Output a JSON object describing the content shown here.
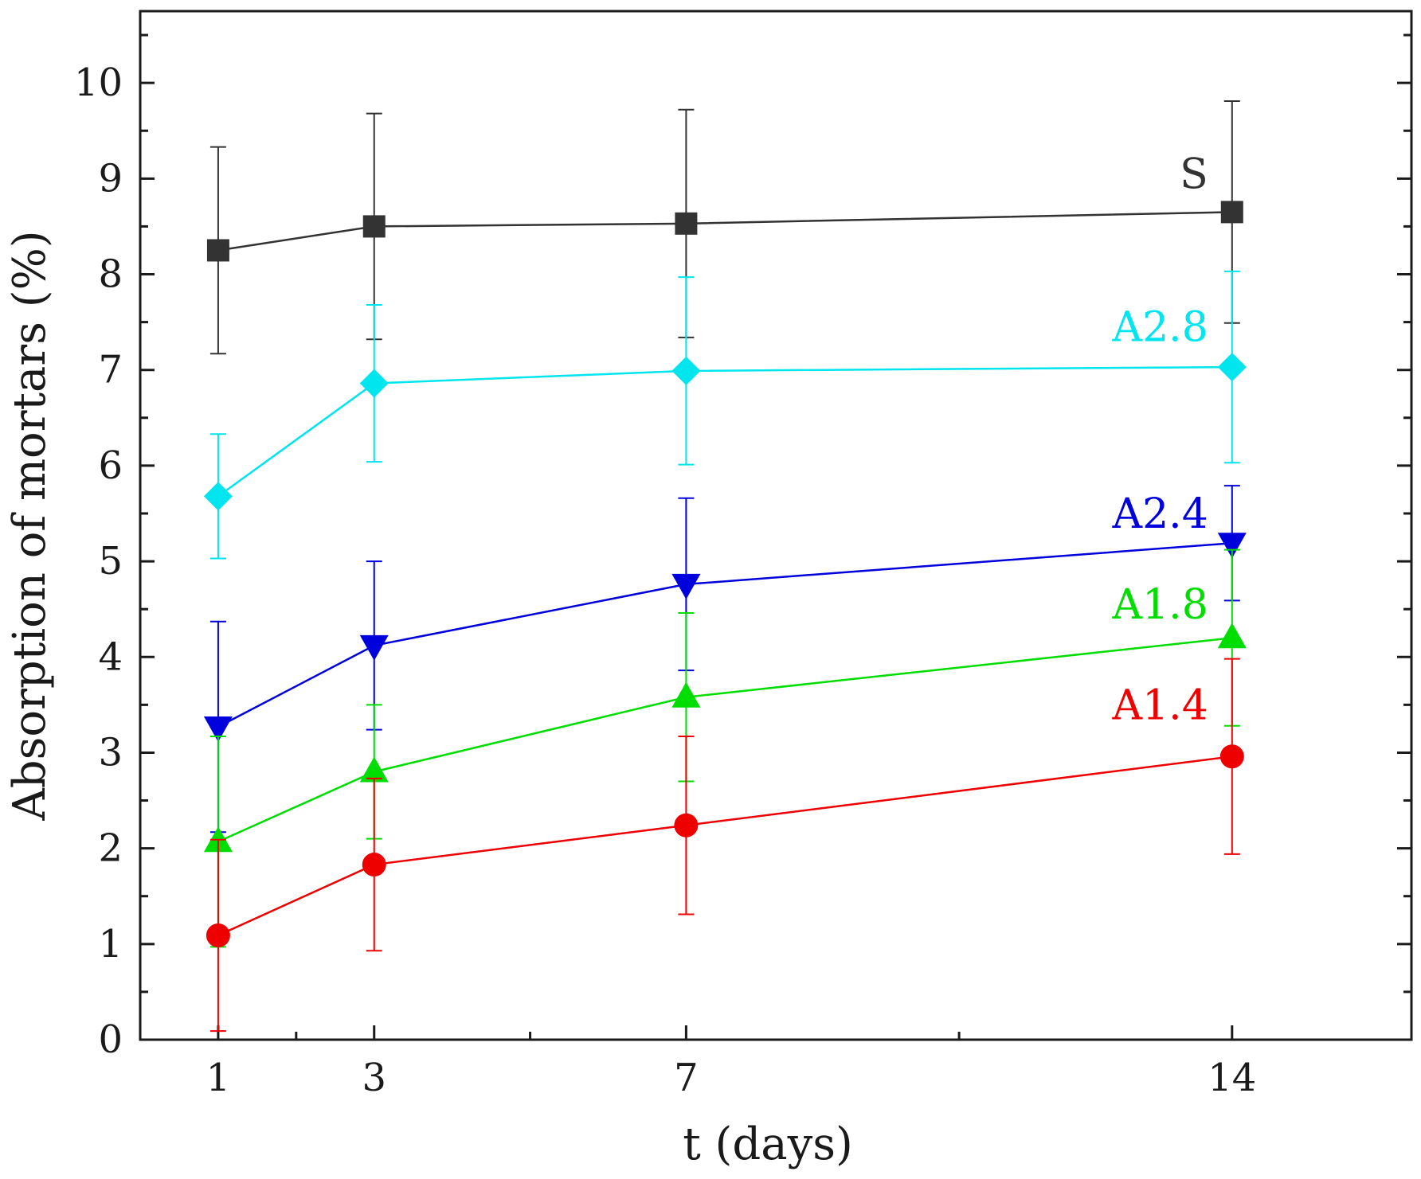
{
  "chart_data": {
    "type": "line",
    "title": "",
    "xlabel": "t (days)",
    "ylabel": "Absorption of mortars (%)",
    "xlim": [
      0,
      16.3
    ],
    "ylim": [
      0,
      10.75
    ],
    "x_ticks": [
      1,
      3,
      7,
      14
    ],
    "x_tick_labels": [
      "1",
      "3",
      "7",
      "14"
    ],
    "y_ticks": [
      0,
      1,
      2,
      3,
      4,
      5,
      6,
      7,
      8,
      9,
      10
    ],
    "y_tick_labels": [
      "0",
      "1",
      "2",
      "3",
      "4",
      "5",
      "6",
      "7",
      "8",
      "9",
      "10"
    ],
    "grid": false,
    "legend": "inline labels at right",
    "series": [
      {
        "name": "S",
        "color": "#333333",
        "marker": "square",
        "x": [
          1,
          3,
          7,
          14
        ],
        "y": [
          8.25,
          8.5,
          8.53,
          8.65
        ],
        "err": [
          1.08,
          1.18,
          1.19,
          1.16
        ]
      },
      {
        "name": "A2.8",
        "color": "#00e5ee",
        "marker": "diamond",
        "x": [
          1,
          3,
          7,
          14
        ],
        "y": [
          5.68,
          6.86,
          6.99,
          7.03
        ],
        "err": [
          0.65,
          0.82,
          0.98,
          1.0
        ]
      },
      {
        "name": "A2.4",
        "color": "#0000dd",
        "marker": "triangle-down",
        "x": [
          1,
          3,
          7,
          14
        ],
        "y": [
          3.27,
          4.12,
          4.76,
          5.19
        ],
        "err": [
          1.1,
          0.88,
          0.9,
          0.6
        ]
      },
      {
        "name": "A1.8",
        "color": "#00dd00",
        "marker": "triangle-up",
        "x": [
          1,
          3,
          7,
          14
        ],
        "y": [
          2.07,
          2.8,
          3.58,
          4.2
        ],
        "err": [
          1.1,
          0.7,
          0.88,
          0.92
        ]
      },
      {
        "name": "A1.4",
        "color": "#ee0000",
        "marker": "circle",
        "x": [
          1,
          3,
          7,
          14
        ],
        "y": [
          1.09,
          1.83,
          2.24,
          2.96
        ],
        "err": [
          1.0,
          0.9,
          0.93,
          1.02
        ]
      }
    ]
  }
}
